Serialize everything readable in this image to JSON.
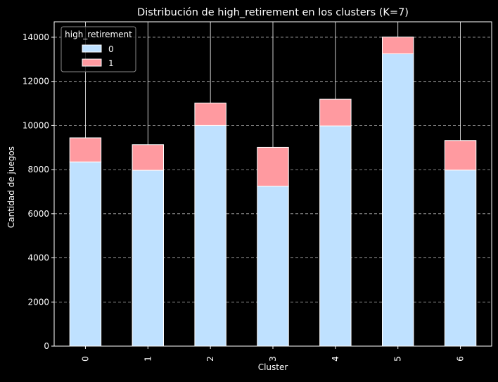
{
  "chart_data": {
    "type": "bar",
    "stacked": true,
    "title": "Distribución de high_retirement en los clusters (K=7)",
    "xlabel": "Cluster",
    "ylabel": "Cantidad de juegos",
    "categories": [
      "0",
      "1",
      "2",
      "3",
      "4",
      "5",
      "6"
    ],
    "series": [
      {
        "name": "0",
        "color": "#bfe1ff",
        "values": [
          8350,
          7970,
          10000,
          7250,
          9980,
          13250,
          7980
        ]
      },
      {
        "name": "1",
        "color": "#ff9aa0",
        "values": [
          1090,
          1160,
          1020,
          1760,
          1210,
          760,
          1340
        ]
      }
    ],
    "ylim": [
      0,
      14700
    ],
    "yticks": [
      0,
      2000,
      4000,
      6000,
      8000,
      10000,
      12000,
      14000
    ],
    "legend": {
      "title": "high_retirement",
      "position": "top-left"
    },
    "grid": {
      "y": true,
      "x_through_bars": true,
      "style": "dashed"
    },
    "background": "#000000",
    "foreground": "#ffffff"
  }
}
